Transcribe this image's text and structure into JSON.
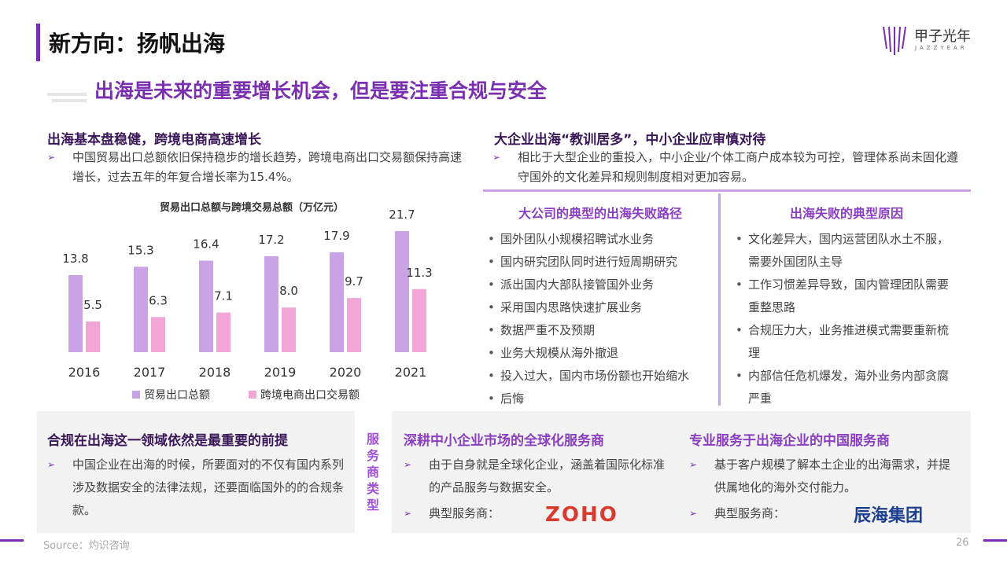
{
  "header": {
    "title": "新方向：扬帆出海",
    "logo": {
      "name": "甲子光年",
      "sub": "JAZZYEAR"
    }
  },
  "subtitle": "出海是未来的重要增长机会，但是要注重合规与安全",
  "left": {
    "heading": "出海基本盘稳健，跨境电商高速增长",
    "bullets": [
      "中国贸易出口总额依旧保持稳步的增长趋势，跨境电商出口交易额保持高速增长，过去五年的年复合增长率为15.4%。"
    ]
  },
  "chart_data": {
    "type": "bar",
    "title": "贸易出口总额与跨境交易总额（万亿元）",
    "categories": [
      "2016",
      "2017",
      "2018",
      "2019",
      "2020",
      "2021"
    ],
    "series": [
      {
        "name": "贸易出口总额",
        "color": "#c9a3e6",
        "values": [
          13.8,
          15.3,
          16.4,
          17.2,
          17.9,
          21.7
        ]
      },
      {
        "name": "跨境电商出口交易额",
        "color": "#f2a6d8",
        "values": [
          5.5,
          6.3,
          7.1,
          8.0,
          9.7,
          11.3
        ],
        "value_labels": [
          "5.5",
          "6.3",
          "7.1",
          "8.0",
          "9.7",
          "11.3"
        ]
      }
    ]
  },
  "right": {
    "heading": "大企业出海“教训居多”，中小企业应审慎对待",
    "bullets": [
      "相比于大型企业的重投入，中小企业/个体工商户成本较为可控，管理体系尚未固化遵守国外的文化差异和规则制度相对更加容易。"
    ],
    "columns": [
      {
        "heading": "大公司的典型的出海失败路径",
        "items": [
          "国外团队小规模招聘试水业务",
          "国内研究团队同时进行短周期研究",
          "派出国内大部队接管国外业务",
          "采用国内思路快速扩展业务",
          "数据严重不及预期",
          "业务大规模从海外撤退",
          "投入过大，国内市场份额也开始缩水",
          "后悔"
        ]
      },
      {
        "heading": "出海失败的典型原因",
        "items": [
          "文化差异大，国内运营团队水土不服，需要外国团队主导",
          "工作习惯差异导致，国内管理团队需要重整思路",
          "合规压力大，业务推进模式需要重新梳理",
          "内部信任危机爆发，海外业务内部贪腐严重"
        ]
      }
    ]
  },
  "bottom": {
    "compliance": {
      "heading": "合规在出海这一领域依然是最重要的前提",
      "bullets": [
        "中国企业在出海的时候，所要面对的不仅有国内系列涉及数据安全的法律法规，还要面临国外的的合规条款。"
      ]
    },
    "service_type_label": "服务商类型",
    "providers": [
      {
        "heading": "深耕中小企业市场的全球化服务商",
        "bullets": [
          "由于自身就是全球化企业，涵盖着国际化标准的产品服务与数据安全。",
          "典型服务商："
        ],
        "logo": "ZOHO"
      },
      {
        "heading": "专业服务于出海企业的中国服务商",
        "bullets": [
          "基于客户规模了解本土企业的出海需求，并提供属地化的海外交付能力。",
          "典型服务商："
        ],
        "logo": "辰海集团"
      }
    ]
  },
  "footer": {
    "source": "Source：灼识咨询",
    "page": "26"
  }
}
